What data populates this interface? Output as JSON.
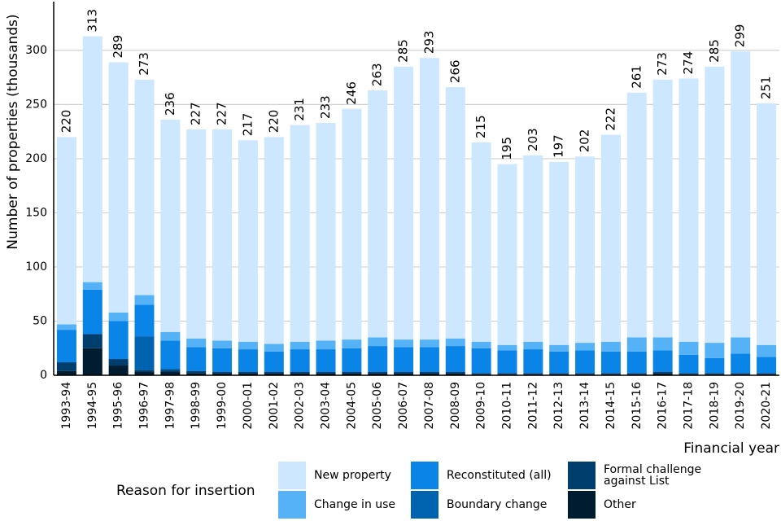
{
  "chart_data": {
    "type": "stacked_bar",
    "x_label": "Financial year",
    "y_label": "Number of properties (thousands)",
    "legend_title": "Reason for insertion",
    "categories": [
      "1993-94",
      "1994-95",
      "1995-96",
      "1996-97",
      "1997-98",
      "1998-99",
      "1999-00",
      "2000-01",
      "2001-02",
      "2002-03",
      "2003-04",
      "2004-05",
      "2005-06",
      "2006-07",
      "2007-08",
      "2008-09",
      "2009-10",
      "2010-11",
      "2011-12",
      "2012-13",
      "2013-14",
      "2014-15",
      "2015-16",
      "2016-17",
      "2017-18",
      "2018-19",
      "2019-20",
      "2020-21"
    ],
    "totals": [
      220,
      313,
      289,
      273,
      236,
      227,
      227,
      217,
      220,
      231,
      233,
      246,
      263,
      285,
      293,
      266,
      215,
      195,
      203,
      197,
      202,
      222,
      261,
      273,
      274,
      285,
      299,
      251
    ],
    "series": [
      {
        "name": "Other",
        "color": "#001c30",
        "values": [
          4,
          25,
          9,
          3,
          3,
          2,
          2,
          2,
          2,
          2,
          2,
          2,
          2,
          2,
          2,
          2,
          1,
          1,
          1,
          1,
          1,
          1,
          1,
          2,
          1,
          1,
          1,
          1
        ]
      },
      {
        "name": "Formal challenge against List",
        "color": "#003e6e",
        "values": [
          8,
          13,
          6,
          2,
          2,
          2,
          1,
          1,
          1,
          1,
          1,
          1,
          1,
          1,
          1,
          1,
          1,
          1,
          1,
          1,
          1,
          1,
          1,
          1,
          1,
          1,
          1,
          1
        ]
      },
      {
        "name": "Boundary change",
        "color": "#0063b0",
        "values": [
          0,
          0,
          0,
          31,
          1,
          0,
          0,
          0,
          0,
          0,
          0,
          0,
          0,
          0,
          0,
          0,
          0,
          0,
          0,
          0,
          0,
          0,
          0,
          0,
          0,
          0,
          0,
          0
        ]
      },
      {
        "name": "Reconstituted (all)",
        "color": "#0b84e8",
        "values": [
          30,
          41,
          35,
          29,
          26,
          22,
          22,
          21,
          19,
          21,
          21,
          22,
          24,
          23,
          23,
          24,
          23,
          21,
          22,
          20,
          21,
          20,
          20,
          20,
          17,
          14,
          18,
          15
        ]
      },
      {
        "name": "Change in use",
        "color": "#55b2f7",
        "values": [
          5,
          7,
          8,
          9,
          8,
          8,
          7,
          7,
          7,
          7,
          8,
          8,
          8,
          7,
          7,
          7,
          6,
          5,
          7,
          6,
          7,
          9,
          13,
          12,
          12,
          14,
          15,
          11
        ]
      },
      {
        "name": "New property",
        "color": "#cce7ff",
        "values": [
          173,
          227,
          231,
          199,
          196,
          193,
          195,
          186,
          191,
          200,
          201,
          213,
          228,
          252,
          260,
          232,
          184,
          167,
          172,
          169,
          172,
          191,
          226,
          238,
          243,
          255,
          264,
          223
        ]
      }
    ],
    "ylim": [
      0,
      345
    ],
    "yticks": [
      0,
      50,
      100,
      150,
      200,
      250,
      300
    ],
    "grid": true
  }
}
